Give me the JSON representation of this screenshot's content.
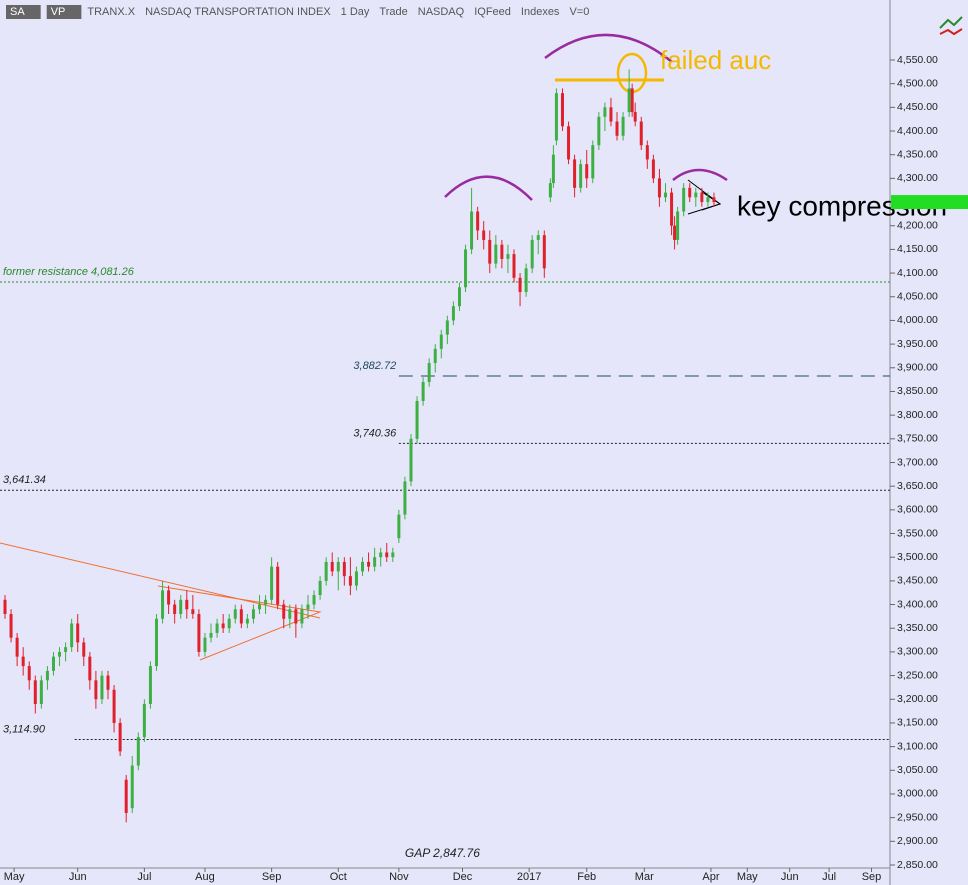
{
  "header": {
    "items": [
      "SA",
      "VP",
      "TRANX.X",
      "NASDAQ TRANSPORTATION INDEX",
      "1 Day",
      "Trade",
      "NASDAQ",
      "IQFeed",
      "Indexes",
      "V=0"
    ]
  },
  "chart_data": {
    "type": "candlestick",
    "up_color": "#3cb043",
    "down_color": "#e0202a",
    "x": [
      0,
      2,
      4,
      6,
      8,
      10,
      12,
      14,
      16,
      18,
      20,
      22,
      24,
      26,
      28,
      30,
      32,
      34,
      36,
      38,
      40,
      42,
      44,
      46,
      48,
      50,
      52,
      54,
      56,
      58,
      60,
      62,
      64,
      66,
      68,
      70,
      72,
      74,
      76,
      78,
      80,
      82,
      84,
      86,
      88,
      90,
      92,
      94,
      96,
      98,
      100,
      102,
      104,
      106,
      108,
      110,
      112,
      114,
      116,
      118,
      120,
      122,
      124,
      126,
      128,
      130,
      132,
      134,
      136,
      138,
      140,
      142,
      144,
      146,
      148,
      150,
      152,
      154,
      156,
      158,
      160,
      162,
      164,
      166,
      168,
      170,
      172,
      174,
      176,
      178,
      180,
      181,
      182,
      184,
      186,
      188,
      190,
      192,
      194,
      196,
      198,
      200,
      202,
      204,
      206,
      207,
      208,
      210,
      212,
      214,
      216,
      218,
      220,
      221,
      222,
      224,
      226,
      228,
      230,
      232,
      234
    ],
    "open": [
      3410,
      3380,
      3330,
      3290,
      3270,
      3240,
      3190,
      3240,
      3260,
      3290,
      3300,
      3310,
      3360,
      3320,
      3290,
      3240,
      3200,
      3250,
      3220,
      3150,
      3030,
      2970,
      3060,
      3120,
      3190,
      3270,
      3370,
      3430,
      3400,
      3380,
      3410,
      3390,
      3380,
      3300,
      3330,
      3340,
      3360,
      3350,
      3370,
      3390,
      3360,
      3370,
      3390,
      3400,
      3410,
      3480,
      3400,
      3370,
      3390,
      3360,
      3390,
      3400,
      3420,
      3450,
      3490,
      3470,
      3490,
      3460,
      3440,
      3470,
      3490,
      3480,
      3500,
      3510,
      3500,
      3540,
      3590,
      3660,
      3750,
      3830,
      3870,
      3910,
      3940,
      3970,
      4000,
      4030,
      4070,
      4150,
      4230,
      4190,
      4170,
      4120,
      4160,
      4130,
      4140,
      4090,
      4060,
      4110,
      4170,
      4180,
      4260,
      4290,
      4380,
      4480,
      4410,
      4340,
      4280,
      4330,
      4300,
      4370,
      4430,
      4450,
      4420,
      4390,
      4440,
      4490,
      4440,
      4420,
      4370,
      4340,
      4300,
      4260,
      4270,
      4200,
      4170,
      4230,
      4280,
      4260,
      4270,
      4250,
      4260
    ],
    "high": [
      3420,
      3390,
      3340,
      3310,
      3280,
      3250,
      3250,
      3270,
      3300,
      3310,
      3320,
      3370,
      3380,
      3330,
      3300,
      3260,
      3260,
      3260,
      3230,
      3160,
      3040,
      3080,
      3130,
      3200,
      3280,
      3380,
      3450,
      3440,
      3410,
      3420,
      3430,
      3420,
      3390,
      3340,
      3360,
      3370,
      3380,
      3380,
      3400,
      3400,
      3380,
      3400,
      3420,
      3420,
      3500,
      3490,
      3410,
      3400,
      3400,
      3400,
      3420,
      3430,
      3460,
      3500,
      3510,
      3500,
      3500,
      3500,
      3480,
      3500,
      3510,
      3520,
      3520,
      3530,
      3520,
      3600,
      3670,
      3760,
      3840,
      3880,
      3920,
      3950,
      3980,
      4010,
      4040,
      4080,
      4160,
      4280,
      4240,
      4210,
      4190,
      4180,
      4170,
      4160,
      4150,
      4100,
      4120,
      4180,
      4190,
      4190,
      4300,
      4370,
      4490,
      4490,
      4420,
      4350,
      4340,
      4360,
      4380,
      4440,
      4460,
      4470,
      4440,
      4440,
      4530,
      4500,
      4460,
      4430,
      4380,
      4350,
      4320,
      4290,
      4280,
      4220,
      4240,
      4290,
      4290,
      4280,
      4280,
      4270,
      4270
    ],
    "low": [
      3370,
      3320,
      3270,
      3250,
      3220,
      3170,
      3180,
      3220,
      3250,
      3270,
      3280,
      3300,
      3300,
      3270,
      3220,
      3180,
      3190,
      3200,
      3130,
      3080,
      2940,
      2960,
      3050,
      3110,
      3180,
      3260,
      3360,
      3380,
      3360,
      3370,
      3370,
      3370,
      3290,
      3290,
      3320,
      3330,
      3340,
      3340,
      3360,
      3350,
      3350,
      3360,
      3380,
      3380,
      3400,
      3390,
      3350,
      3350,
      3330,
      3350,
      3370,
      3390,
      3410,
      3440,
      3460,
      3430,
      3440,
      3420,
      3430,
      3460,
      3470,
      3470,
      3480,
      3490,
      3490,
      3530,
      3580,
      3650,
      3740,
      3820,
      3860,
      3890,
      3920,
      3950,
      3990,
      4020,
      4060,
      4140,
      4170,
      4150,
      4100,
      4110,
      4110,
      4100,
      4080,
      4030,
      4050,
      4100,
      4140,
      4090,
      4250,
      4280,
      4370,
      4400,
      4330,
      4260,
      4270,
      4280,
      4290,
      4360,
      4400,
      4410,
      4380,
      4380,
      4430,
      4430,
      4410,
      4360,
      4320,
      4290,
      4240,
      4250,
      4180,
      4150,
      4160,
      4220,
      4250,
      4240,
      4240,
      4240,
      4240
    ],
    "close": [
      3380,
      3330,
      3290,
      3270,
      3240,
      3190,
      3240,
      3260,
      3290,
      3300,
      3310,
      3360,
      3320,
      3290,
      3240,
      3200,
      3250,
      3220,
      3150,
      3090,
      2960,
      3060,
      3120,
      3190,
      3270,
      3370,
      3430,
      3400,
      3380,
      3410,
      3390,
      3380,
      3300,
      3330,
      3340,
      3360,
      3350,
      3370,
      3390,
      3360,
      3370,
      3390,
      3400,
      3410,
      3480,
      3400,
      3370,
      3390,
      3360,
      3390,
      3400,
      3420,
      3450,
      3490,
      3470,
      3490,
      3460,
      3440,
      3470,
      3490,
      3480,
      3500,
      3510,
      3500,
      3510,
      3590,
      3660,
      3750,
      3830,
      3870,
      3910,
      3940,
      3970,
      4000,
      4030,
      4070,
      4150,
      4230,
      4190,
      4170,
      4120,
      4160,
      4130,
      4140,
      4090,
      4060,
      4110,
      4170,
      4180,
      4110,
      4290,
      4350,
      4480,
      4410,
      4340,
      4280,
      4330,
      4300,
      4370,
      4430,
      4450,
      4420,
      4390,
      4430,
      4490,
      4440,
      4420,
      4370,
      4340,
      4300,
      4260,
      4270,
      4200,
      4170,
      4230,
      4280,
      4260,
      4270,
      4250,
      4260,
      4250
    ],
    "xlim": [
      -1.65,
      292.1
    ],
    "ylim": [
      2818.3,
      4676.7
    ],
    "xticks": [
      {
        "value": 3,
        "label": "May"
      },
      {
        "value": 24,
        "label": "Jun"
      },
      {
        "value": 46,
        "label": "Jul"
      },
      {
        "value": 66,
        "label": "Aug"
      },
      {
        "value": 88,
        "label": "Sep"
      },
      {
        "value": 110,
        "label": "Oct"
      },
      {
        "value": 130,
        "label": "Nov"
      },
      {
        "value": 151,
        "label": "Dec"
      },
      {
        "value": 173,
        "label": "2017"
      },
      {
        "value": 192,
        "label": "Feb"
      },
      {
        "value": 211,
        "label": "Mar"
      },
      {
        "value": 233,
        "label": "Apr"
      },
      {
        "value": 245,
        "label": "May"
      },
      {
        "value": 259,
        "label": "Jun"
      },
      {
        "value": 272,
        "label": "Jul"
      },
      {
        "value": 286,
        "label": "Sep"
      }
    ],
    "yticks": [
      {
        "value": 2850,
        "label": "2,850.00"
      },
      {
        "value": 2900,
        "label": "2,900.00"
      },
      {
        "value": 2950,
        "label": "2,950.00"
      },
      {
        "value": 3000,
        "label": "3,000.00"
      },
      {
        "value": 3050,
        "label": "3,050.00"
      },
      {
        "value": 3100,
        "label": "3,100.00"
      },
      {
        "value": 3150,
        "label": "3,150.00"
      },
      {
        "value": 3200,
        "label": "3,200.00"
      },
      {
        "value": 3250,
        "label": "3,250.00"
      },
      {
        "value": 3300,
        "label": "3,300.00"
      },
      {
        "value": 3350,
        "label": "3,350.00"
      },
      {
        "value": 3400,
        "label": "3,400.00"
      },
      {
        "value": 3450,
        "label": "3,450.00"
      },
      {
        "value": 3500,
        "label": "3,500.00"
      },
      {
        "value": 3550,
        "label": "3,550.00"
      },
      {
        "value": 3600,
        "label": "3,600.00"
      },
      {
        "value": 3650,
        "label": "3,650.00"
      },
      {
        "value": 3700,
        "label": "3,700.00"
      },
      {
        "value": 3750,
        "label": "3,750.00"
      },
      {
        "value": 3800,
        "label": "3,800.00"
      },
      {
        "value": 3850,
        "label": "3,850.00"
      },
      {
        "value": 3900,
        "label": "3,900.00"
      },
      {
        "value": 3950,
        "label": "3,950.00"
      },
      {
        "value": 4000,
        "label": "4,000.00"
      },
      {
        "value": 4050,
        "label": "4,050.00"
      },
      {
        "value": 4100,
        "label": "4,100.00"
      },
      {
        "value": 4150,
        "label": "4,150.00"
      },
      {
        "value": 4200,
        "label": "4,200.00"
      },
      {
        "value": 4250,
        "label": "4,250.00"
      },
      {
        "value": 4300,
        "label": "4,300.00"
      },
      {
        "value": 4350,
        "label": "4,350.00"
      },
      {
        "value": 4400,
        "label": "4,400.00"
      },
      {
        "value": 4450,
        "label": "4,450.00"
      },
      {
        "value": 4500,
        "label": "4,500.00"
      },
      {
        "value": 4550,
        "label": "4,550.00"
      }
    ],
    "levels": [
      {
        "value": 4081.26,
        "label": "former resistance 4,081.26",
        "color": "#2a8a2a",
        "dash": "2,2",
        "from": -1.65,
        "label_at": -1.65
      },
      {
        "value": 3882.72,
        "label": "3,882.72",
        "color": "#1e4a60",
        "dash": "14,8",
        "from": 130,
        "label_at": 114
      },
      {
        "value": 3740.36,
        "label": "3,740.36",
        "color": "#222222",
        "dash": "2,2",
        "from": 130,
        "label_at": 114
      },
      {
        "value": 3641.34,
        "label": "3,641.34",
        "color": "#222222",
        "dash": "2,2",
        "from": -1.65,
        "label_at": -1.65
      },
      {
        "value": 3114.9,
        "label": "3,114.90",
        "color": "#222222",
        "dash": "2,2",
        "from": 23,
        "label_at": -1.65
      }
    ],
    "gap": {
      "value": 2847.76,
      "label": "GAP 2,847.76",
      "at": 132
    },
    "annotations": [
      "failed auc",
      "key compression"
    ]
  }
}
